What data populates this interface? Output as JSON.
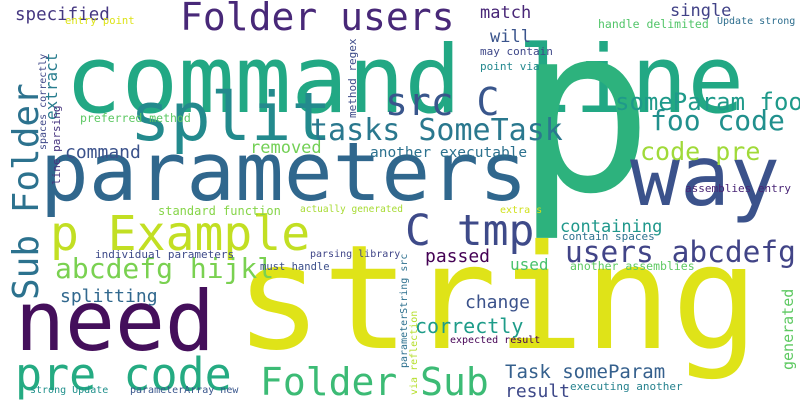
{
  "words": [
    "string",
    "command line",
    "p",
    "parameters",
    "need",
    "split",
    "way",
    "Sub Folder",
    "p Example",
    "C tmp",
    "Folder users",
    "src C",
    "pre code",
    "Folder Sub",
    "users abcdefg",
    "tasks SomeTask",
    "someParam foo",
    "foo code",
    "code pre",
    "abcdefg hijkl",
    "Task someParam",
    "result",
    "correctly",
    "change",
    "passed",
    "containing",
    "splitting",
    "specified",
    "command",
    "removed",
    "another executable",
    "match",
    "will",
    "single",
    "used",
    "extract",
    "generated",
    "preferred method",
    "entry point",
    "handle delimited",
    "Update strong",
    "may contain",
    "point via",
    "method regex",
    "spaces correctly",
    "line parsing",
    "standard function",
    "actually generated",
    "extra s",
    "contain spaces",
    "individual parameters",
    "parsing library",
    "must handle",
    "another assemblies",
    "assemblies entry",
    "parameterString src",
    "via reflection",
    "expected result",
    "executing another",
    "strong Update",
    "parameterArray new"
  ]
}
